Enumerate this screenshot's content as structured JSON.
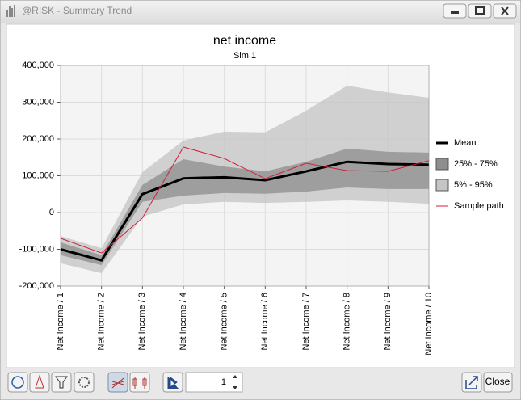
{
  "window": {
    "title": "@RISK - Summary Trend"
  },
  "chart_data": {
    "type": "trend",
    "title": "net income",
    "subtitle": "Sim 1",
    "categories": [
      "Net Income / 1",
      "Net Income / 2",
      "Net Income / 3",
      "Net Income / 4",
      "Net Income / 5",
      "Net Income / 6",
      "Net Income / 7",
      "Net Income / 8",
      "Net Income / 9",
      "Net Income / 10"
    ],
    "ylim": [
      -200000,
      400000
    ],
    "yticks": [
      {
        "value": -200000,
        "label": "-200,000"
      },
      {
        "value": -100000,
        "label": "-100,000"
      },
      0,
      {
        "value": 100000,
        "label": "100,000"
      },
      {
        "value": 200000,
        "label": "200,000"
      },
      {
        "value": 300000,
        "label": "300,000"
      },
      {
        "value": 400000,
        "label": "400,000"
      }
    ],
    "grid": true,
    "series": [
      {
        "name": "Mean",
        "kind": "line",
        "color": "#000000",
        "values": [
          -100000,
          -130000,
          50000,
          93000,
          96000,
          88000,
          112000,
          138000,
          132000,
          130000
        ]
      },
      {
        "name": "25% - 75%",
        "kind": "band",
        "color": "#8e8e8e",
        "lower": [
          -116000,
          -143000,
          29000,
          46000,
          53000,
          51000,
          57000,
          68000,
          64000,
          64000
        ],
        "upper": [
          -81000,
          -116000,
          75000,
          145000,
          125000,
          112000,
          138000,
          174000,
          165000,
          163000
        ]
      },
      {
        "name": "5% - 95%",
        "kind": "band",
        "color": "#c4c4c4",
        "lower": [
          -138000,
          -165000,
          -11000,
          22000,
          29000,
          26000,
          29000,
          33000,
          29000,
          24000
        ],
        "upper": [
          -64000,
          -97000,
          110000,
          196000,
          220000,
          218000,
          277000,
          345000,
          327000,
          312000
        ]
      },
      {
        "name": "Sample path",
        "kind": "line",
        "color": "#d0203c",
        "values": [
          -70000,
          -110000,
          -15000,
          178000,
          147000,
          92000,
          134000,
          114000,
          112000,
          141000
        ]
      }
    ]
  },
  "toolbar": {
    "spinner_value": 1,
    "close_label": "Close"
  }
}
